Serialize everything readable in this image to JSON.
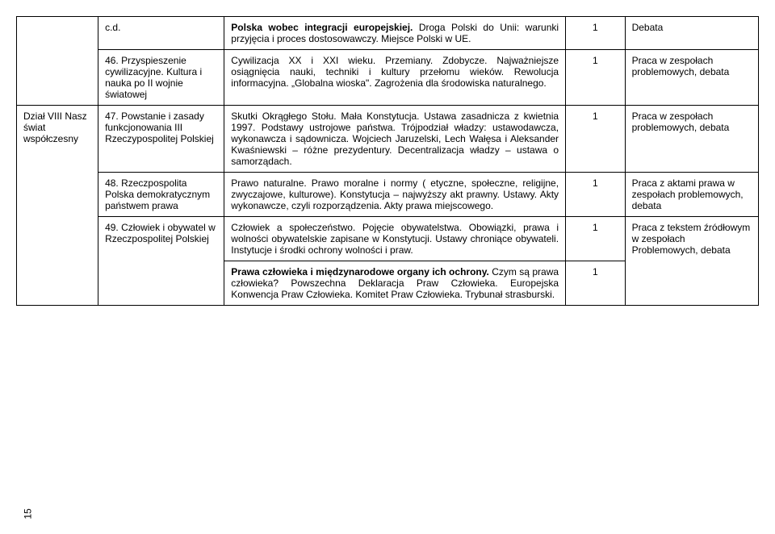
{
  "pageNumber": "15",
  "rows": [
    {
      "c1": "",
      "c2": "c.d.",
      "c3_bold": "Polska wobec integracji europejskiej.",
      "c3_rest": " Droga Polski do Unii: warunki przyjęcia i proces dostosowawczy. Miejsce Polski w UE.",
      "c4": "1",
      "c5": "Debata"
    },
    {
      "c1": "",
      "c2": "46. Przyspieszenie cywilizacyjne. Kultura i nauka po II wojnie światowej",
      "c3": "Cywilizacja XX i XXI wieku. Przemiany. Zdobycze. Najważniejsze osiągnięcia nauki, techniki i kultury przełomu wieków. Rewolucja informacyjna. „Globalna wioska\". Zagrożenia dla środowiska naturalnego.",
      "c4": "1",
      "c5": "Praca w zespołach problemowych, debata"
    },
    {
      "c1": "Dział VIII Nasz świat współczesny",
      "c2": "47. Powstanie i zasady funkcjonowania III Rzeczypospolitej Polskiej",
      "c3": "Skutki Okrągłego Stołu. Mała Konstytucja. Ustawa zasadnicza z kwietnia 1997. Podstawy ustrojowe państwa. Trójpodział władzy: ustawodawcza, wykonawcza i sądownicza. Wojciech Jaruzelski, Lech Wałęsa i Aleksander Kwaśniewski – różne prezydentury. Decentralizacja władzy – ustawa o samorządach.",
      "c4": "1",
      "c5": "Praca w zespołach problemowych, debata"
    },
    {
      "c1": "",
      "c2": "48. Rzeczpospolita Polska demokratycznym państwem prawa",
      "c3": "Prawo naturalne. Prawo moralne i normy ( etyczne, społeczne, religijne, zwyczajowe, kulturowe). Konstytucja – najwyższy akt prawny. Ustawy. Akty wykonawcze, czyli rozporządzenia. Akty prawa miejscowego.",
      "c4": "1",
      "c5": "Praca z aktami prawa w zespołach problemowych, debata"
    },
    {
      "c2": "49. Człowiek i obywatel w Rzeczpospolitej Polskiej",
      "c3a": "Człowiek a społeczeństwo. Pojęcie obywatelstwa. Obowiązki, prawa i wolności obywatelskie zapisane w Konstytucji. Ustawy chroniące obywateli. Instytucje i  środki ochrony wolności  i praw.",
      "c4a": "1",
      "c5": "Praca z tekstem źródłowym w zespołach Problemowych, debata",
      "c3b_bold": "Prawa człowieka i międzynarodowe organy ich ochrony.",
      "c3b_rest": " Czym są prawa człowieka? Powszechna Deklaracja Praw Człowieka.  Europejska Konwencja Praw Człowieka. Komitet Praw Człowieka. Trybunał strasburski.",
      "c4b": "1"
    }
  ]
}
